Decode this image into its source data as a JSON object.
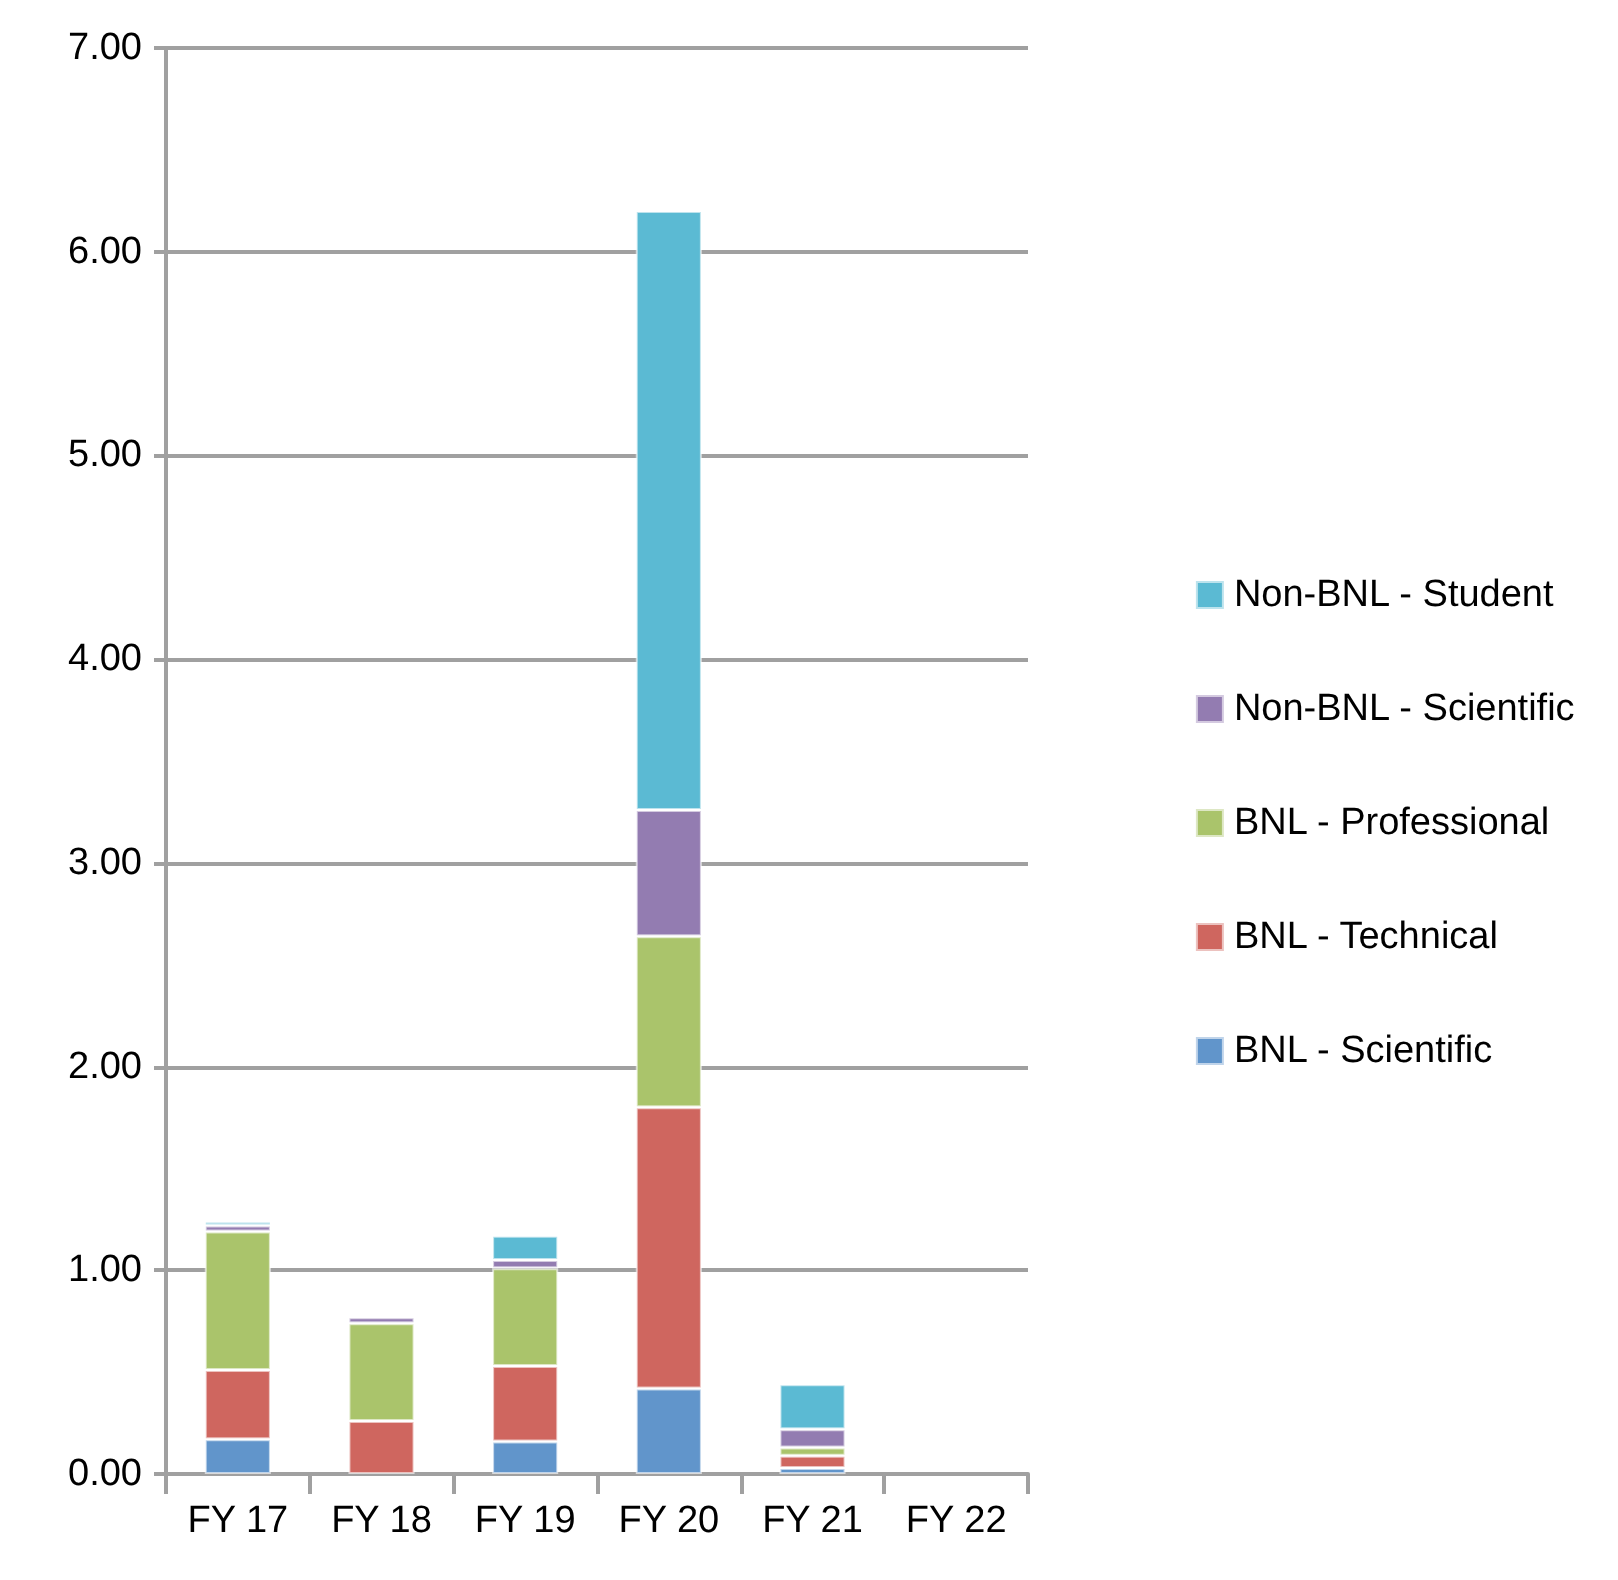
{
  "chart_data": {
    "type": "bar",
    "stacked": true,
    "categories": [
      "FY 17",
      "FY 18",
      "FY 19",
      "FY 20",
      "FY 21",
      "FY 22"
    ],
    "series": [
      {
        "name": "BNL - Scientific",
        "color": "#6195cb",
        "values": [
          0.17,
          null,
          0.16,
          0.42,
          0.03,
          null
        ]
      },
      {
        "name": "BNL - Technical",
        "color": "#cf665f",
        "values": [
          0.34,
          0.26,
          0.37,
          1.38,
          0.06,
          null
        ]
      },
      {
        "name": "BNL - Professional",
        "color": "#aac46b",
        "values": [
          0.68,
          0.48,
          0.48,
          0.84,
          0.04,
          null
        ]
      },
      {
        "name": "Non-BNL - Scientific",
        "color": "#937cb1",
        "values": [
          0.03,
          0.03,
          0.04,
          0.62,
          0.09,
          null
        ]
      },
      {
        "name": "Non-BNL - Student",
        "color": "#5bbad3",
        "values": [
          0.02,
          null,
          0.12,
          2.94,
          0.22,
          null
        ]
      }
    ],
    "ylim": [
      0,
      7
    ],
    "yticks": [
      {
        "value": 0,
        "label": "0.00"
      },
      {
        "value": 1,
        "label": "1.00"
      },
      {
        "value": 2,
        "label": "2.00"
      },
      {
        "value": 3,
        "label": "3.00"
      },
      {
        "value": 4,
        "label": "4.00"
      },
      {
        "value": 5,
        "label": "5.00"
      },
      {
        "value": 6,
        "label": "6.00"
      },
      {
        "value": 7,
        "label": "7.00"
      }
    ],
    "grid": "y",
    "legend": "right"
  }
}
